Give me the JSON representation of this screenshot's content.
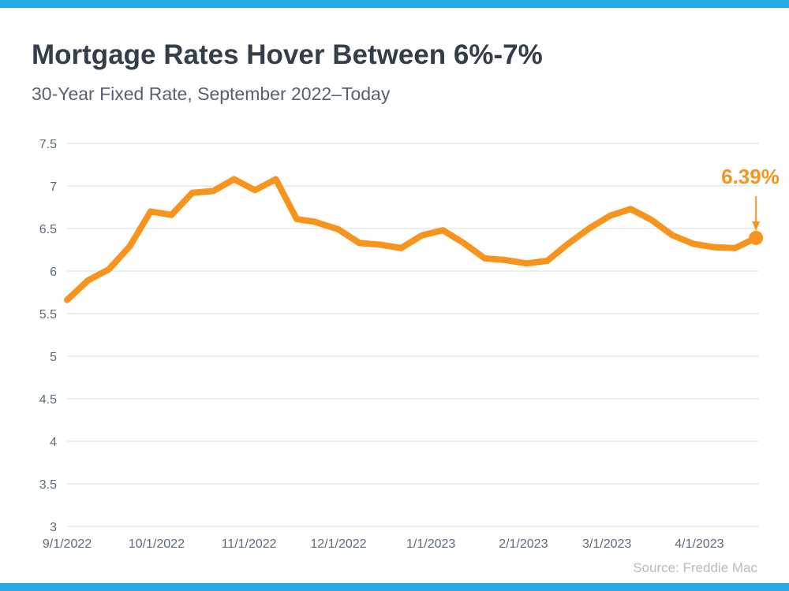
{
  "accent_bar_color": "#27AAE1",
  "header": {
    "title": "Mortgage Rates Hover Between 6%-7%",
    "subtitle": "30-Year Fixed Rate, September 2022–Today"
  },
  "annotation": {
    "label": "6.39%"
  },
  "source": {
    "label": "Source: Freddie Mac"
  },
  "colors": {
    "line": "#F7941D",
    "grid": "#D9DCDF",
    "axis_text": "#5C6B7A",
    "title_text": "#333E48",
    "subtitle_text": "#55626D",
    "source_text": "#B2BDC6",
    "accent_blue": "#27AAE1"
  },
  "chart_data": {
    "type": "line",
    "title": "Mortgage Rates Hover Between 6%-7%",
    "subtitle": "30-Year Fixed Rate, September 2022–Today",
    "series_name": "30-Year Fixed Mortgage Rate (%)",
    "line_color": "#F7941D",
    "grid": "horizontal",
    "legend_position": "none",
    "ylim": [
      3,
      7.5
    ],
    "y_ticks": [
      3,
      3.5,
      4,
      4.5,
      5,
      5.5,
      6,
      6.5,
      7,
      7.5
    ],
    "x_tick_labels": [
      "9/1/2022",
      "10/1/2022",
      "11/1/2022",
      "12/1/2022",
      "1/1/2023",
      "2/1/2023",
      "3/1/2023",
      "4/1/2023"
    ],
    "annotation": {
      "text": "6.39%",
      "point_date": "4/20/2023",
      "point_value": 6.39
    },
    "points": [
      {
        "date": "9/1/2022",
        "value": 5.66
      },
      {
        "date": "9/8/2022",
        "value": 5.89
      },
      {
        "date": "9/15/2022",
        "value": 6.02
      },
      {
        "date": "9/22/2022",
        "value": 6.29
      },
      {
        "date": "9/29/2022",
        "value": 6.7
      },
      {
        "date": "10/6/2022",
        "value": 6.66
      },
      {
        "date": "10/13/2022",
        "value": 6.92
      },
      {
        "date": "10/20/2022",
        "value": 6.94
      },
      {
        "date": "10/27/2022",
        "value": 7.08
      },
      {
        "date": "11/3/2022",
        "value": 6.95
      },
      {
        "date": "11/10/2022",
        "value": 7.08
      },
      {
        "date": "11/17/2022",
        "value": 6.61
      },
      {
        "date": "11/23/2022",
        "value": 6.58
      },
      {
        "date": "12/1/2022",
        "value": 6.49
      },
      {
        "date": "12/8/2022",
        "value": 6.33
      },
      {
        "date": "12/15/2022",
        "value": 6.31
      },
      {
        "date": "12/22/2022",
        "value": 6.27
      },
      {
        "date": "12/29/2022",
        "value": 6.42
      },
      {
        "date": "1/5/2023",
        "value": 6.48
      },
      {
        "date": "1/12/2023",
        "value": 6.33
      },
      {
        "date": "1/19/2023",
        "value": 6.15
      },
      {
        "date": "1/26/2023",
        "value": 6.13
      },
      {
        "date": "2/2/2023",
        "value": 6.09
      },
      {
        "date": "2/9/2023",
        "value": 6.12
      },
      {
        "date": "2/16/2023",
        "value": 6.32
      },
      {
        "date": "2/23/2023",
        "value": 6.5
      },
      {
        "date": "3/2/2023",
        "value": 6.65
      },
      {
        "date": "3/9/2023",
        "value": 6.73
      },
      {
        "date": "3/16/2023",
        "value": 6.6
      },
      {
        "date": "3/23/2023",
        "value": 6.42
      },
      {
        "date": "3/30/2023",
        "value": 6.32
      },
      {
        "date": "4/6/2023",
        "value": 6.28
      },
      {
        "date": "4/13/2023",
        "value": 6.27
      },
      {
        "date": "4/20/2023",
        "value": 6.39
      }
    ]
  }
}
